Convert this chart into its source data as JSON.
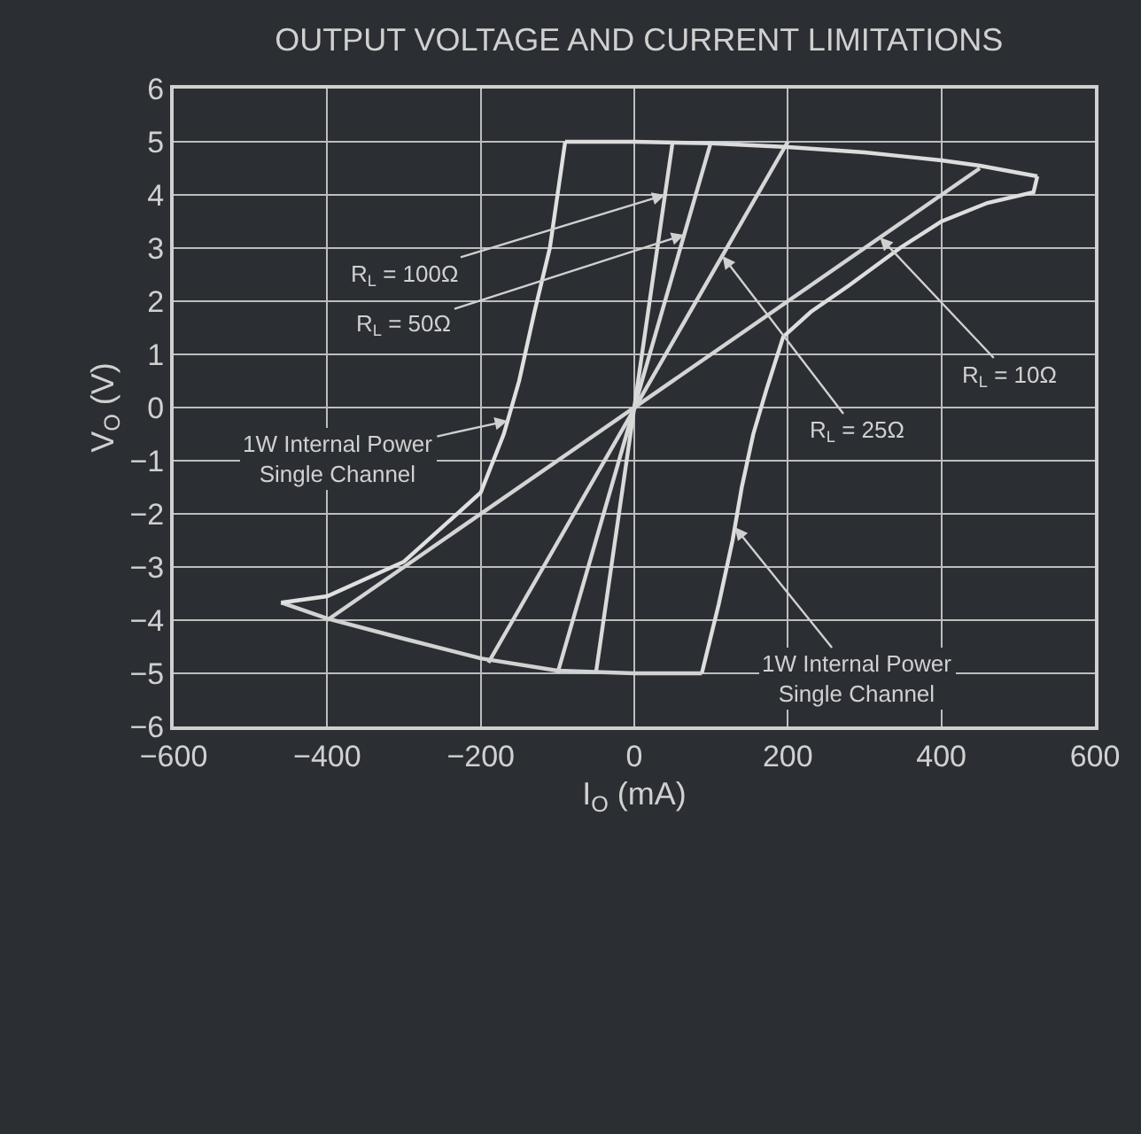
{
  "chart_data": {
    "type": "line",
    "title": "OUTPUT VOLTAGE AND CURRENT LIMITATIONS",
    "xlabel": "I$_{O}$ (mA)",
    "ylabel": "V$_{O}$ (V)",
    "series": [
      {
        "color": "#dadada",
        "x": [
          -50,
          50
        ],
        "values": [
          -5,
          5
        ]
      },
      {
        "color": "#d8d8d8",
        "x": [
          -100,
          100
        ],
        "values": [
          -5,
          5
        ]
      },
      {
        "color": "#d6d6d6",
        "x": [
          -190,
          200
        ],
        "values": [
          -4.8,
          5
        ]
      },
      {
        "color": "#d4d4d4",
        "x": [
          -400,
          450
        ],
        "values": [
          -4,
          4.5
        ]
      },
      {
        "color": "#dcdcdc",
        "x": [
          -90,
          0,
          100,
          200,
          300,
          400,
          450,
          525
        ],
        "values": [
          5,
          5,
          4.97,
          4.9,
          4.8,
          4.65,
          4.55,
          4.35
        ]
      },
      {
        "color": "#dedede",
        "x": [
          525,
          520,
          460,
          400,
          346,
          280,
          230,
          194,
          172,
          155,
          140,
          128,
          110,
          88
        ],
        "values": [
          4.35,
          4.05,
          3.85,
          3.5,
          3.0,
          2.3,
          1.8,
          1.33,
          0.33,
          -0.5,
          -1.5,
          -2.5,
          -3.7,
          -5
        ]
      },
      {
        "color": "#d2d2d2",
        "x": [
          88,
          0,
          -100,
          -200,
          -300,
          -400,
          -460
        ],
        "values": [
          -5,
          -5,
          -4.95,
          -4.72,
          -4.35,
          -3.97,
          -3.67
        ]
      },
      {
        "color": "#e0e0e0",
        "x": [
          -460,
          -400,
          -300,
          -200,
          -170,
          -150,
          -130,
          -110,
          -100,
          -90
        ],
        "values": [
          -3.67,
          -3.55,
          -2.9,
          -1.6,
          -0.5,
          0.5,
          1.8,
          3.0,
          4.0,
          5
        ]
      }
    ],
    "annotations": [
      {
        "text": "R$_{L}$ = 100Ω",
        "x": 40,
        "y": 4.0
      },
      {
        "text": "R$_{L}$ = 50Ω",
        "x": 65,
        "y": 3.25
      },
      {
        "text": "R$_{L}$ = 25Ω",
        "x": 115,
        "y": 2.85
      },
      {
        "text": "R$_{L}$ = 10Ω",
        "x": 320,
        "y": 3.2
      },
      {
        "text": "1W Internal Power\nSingle Channel",
        "x": -165,
        "y": -0.25
      },
      {
        "text": "1W Internal Power\nSingle Channel",
        "x": 131,
        "y": -2.25
      }
    ],
    "xlim": [
      -600,
      600
    ],
    "xticks": [
      -600,
      -400,
      -200,
      0,
      200,
      400,
      600
    ],
    "ylim": [
      -6,
      6
    ],
    "yticks": [
      -6,
      -5,
      -4,
      -3,
      -2,
      -1,
      0,
      1,
      2,
      3,
      4,
      5,
      6
    ],
    "grid": true,
    "marker": "none",
    "line_style": "solid"
  }
}
